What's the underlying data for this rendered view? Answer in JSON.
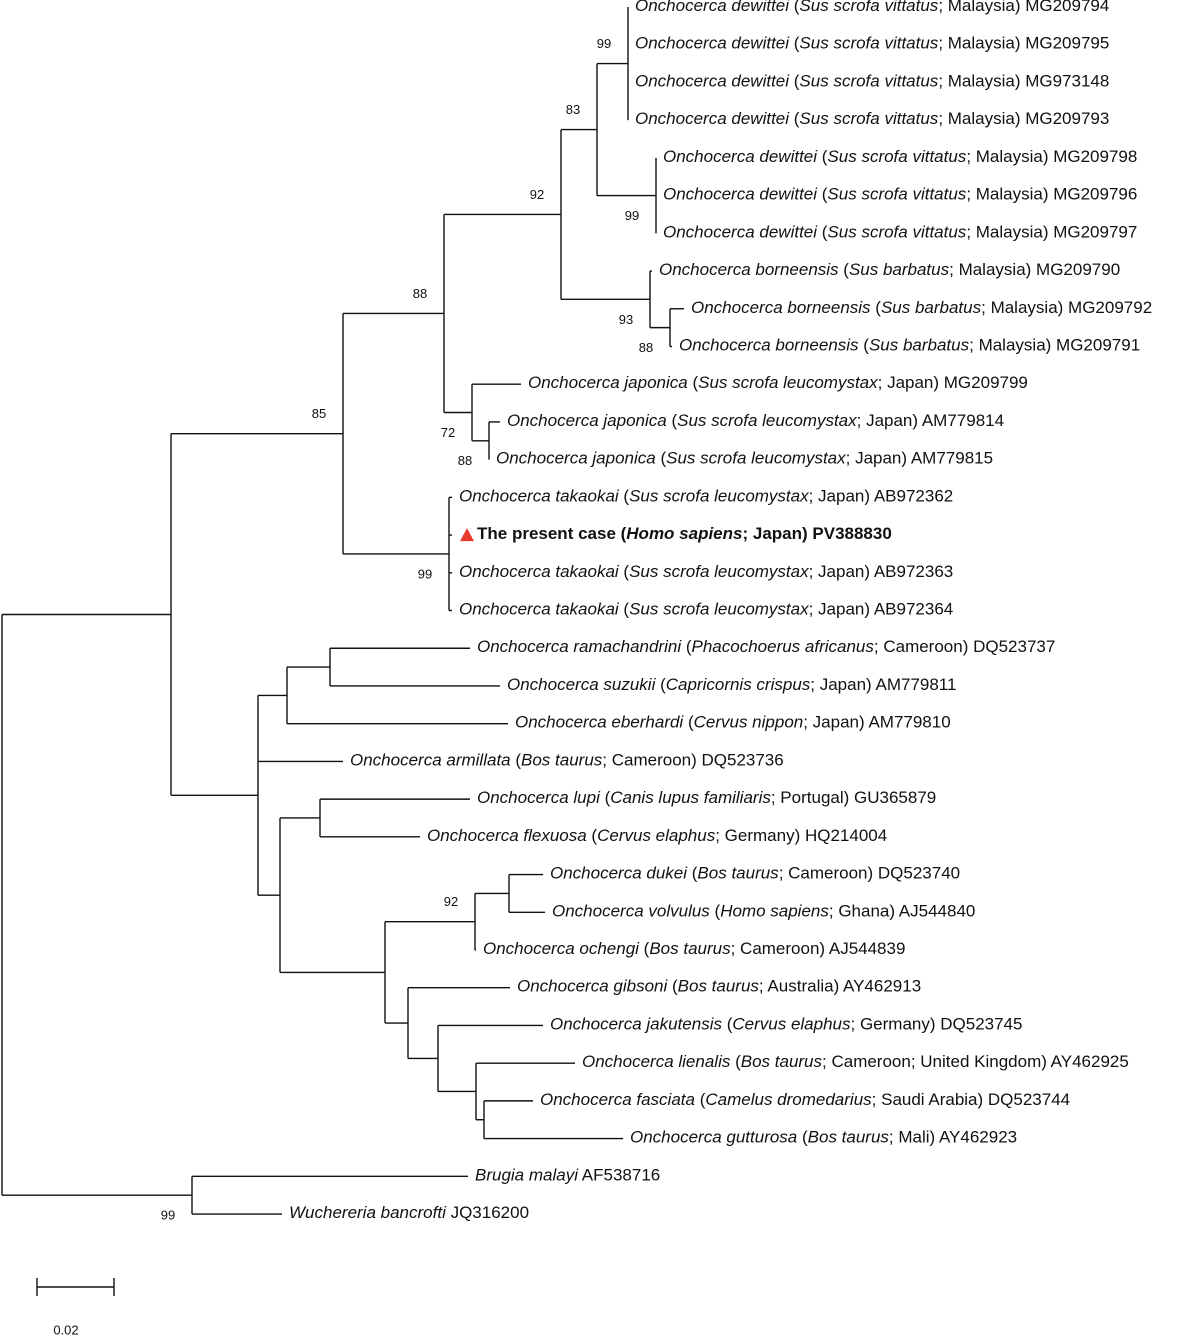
{
  "tree": {
    "leaves": [
      {
        "segments": [
          "Onchocerca dewittei",
          " (",
          "Sus scrofa vittatus",
          "; Malaysia) MG209794"
        ],
        "italic": [
          0,
          2
        ]
      },
      {
        "segments": [
          "Onchocerca dewittei",
          " (",
          "Sus scrofa vittatus",
          "; Malaysia) MG209795"
        ],
        "italic": [
          0,
          2
        ]
      },
      {
        "segments": [
          "Onchocerca dewittei",
          " (",
          "Sus scrofa vittatus",
          "; Malaysia) MG973148"
        ],
        "italic": [
          0,
          2
        ]
      },
      {
        "segments": [
          "Onchocerca dewittei",
          " (",
          "Sus scrofa vittatus",
          "; Malaysia) MG209793"
        ],
        "italic": [
          0,
          2
        ]
      },
      {
        "segments": [
          "Onchocerca dewittei",
          " (",
          "Sus scrofa vittatus",
          "; Malaysia) MG209798"
        ],
        "italic": [
          0,
          2
        ]
      },
      {
        "segments": [
          "Onchocerca dewittei",
          " (",
          "Sus scrofa vittatus",
          "; Malaysia) MG209796"
        ],
        "italic": [
          0,
          2
        ]
      },
      {
        "segments": [
          "Onchocerca dewittei",
          " (",
          "Sus scrofa vittatus",
          "; Malaysia) MG209797"
        ],
        "italic": [
          0,
          2
        ]
      },
      {
        "segments": [
          "Onchocerca borneensis",
          " (",
          "Sus barbatus",
          "; Malaysia) MG209790"
        ],
        "italic": [
          0,
          2
        ]
      },
      {
        "segments": [
          "Onchocerca borneensis",
          " (",
          "Sus barbatus",
          "; Malaysia) MG209792"
        ],
        "italic": [
          0,
          2
        ]
      },
      {
        "segments": [
          "Onchocerca borneensis",
          " (",
          "Sus barbatus",
          "; Malaysia) MG209791"
        ],
        "italic": [
          0,
          2
        ]
      },
      {
        "segments": [
          "Onchocerca japonica",
          " (",
          "Sus scrofa leucomystax",
          "; Japan) MG209799"
        ],
        "italic": [
          0,
          2
        ]
      },
      {
        "segments": [
          "Onchocerca japonica",
          " (",
          "Sus scrofa leucomystax",
          "; Japan) AM779814"
        ],
        "italic": [
          0,
          2
        ]
      },
      {
        "segments": [
          "Onchocerca japonica",
          " (",
          "Sus scrofa leucomystax",
          "; Japan) AM779815"
        ],
        "italic": [
          0,
          2
        ]
      },
      {
        "segments": [
          "Onchocerca takaokai",
          " (",
          "Sus scrofa leucomystax",
          "; Japan) AB972362"
        ],
        "italic": [
          0,
          2
        ]
      },
      {
        "segments": [
          "The present case (",
          "Homo sapiens",
          "; Japan) PV388830"
        ],
        "italic": [
          1
        ],
        "bold": true,
        "marker_color": "#e8392b"
      },
      {
        "segments": [
          "Onchocerca takaokai",
          " (",
          "Sus scrofa leucomystax",
          "; Japan) AB972363"
        ],
        "italic": [
          0,
          2
        ]
      },
      {
        "segments": [
          "Onchocerca takaokai",
          " (",
          "Sus scrofa leucomystax",
          "; Japan) AB972364"
        ],
        "italic": [
          0,
          2
        ]
      },
      {
        "segments": [
          "Onchocerca ramachandrini",
          " (",
          "Phacochoerus africanus",
          "; Cameroon) DQ523737"
        ],
        "italic": [
          0,
          2
        ]
      },
      {
        "segments": [
          "Onchocerca suzukii",
          " (",
          "Capricornis crispus",
          "; Japan) AM779811"
        ],
        "italic": [
          0,
          2
        ]
      },
      {
        "segments": [
          "Onchocerca eberhardi",
          " (",
          "Cervus nippon",
          "; Japan) AM779810"
        ],
        "italic": [
          0,
          2
        ]
      },
      {
        "segments": [
          "Onchocerca armillata",
          " (",
          "Bos taurus",
          "; Cameroon) DQ523736"
        ],
        "italic": [
          0,
          2
        ]
      },
      {
        "segments": [
          "Onchocerca lupi",
          " (",
          "Canis lupus familiaris",
          "; Portugal) GU365879"
        ],
        "italic": [
          0,
          2
        ]
      },
      {
        "segments": [
          "Onchocerca flexuosa",
          " (",
          "Cervus elaphus",
          "; Germany) HQ214004"
        ],
        "italic": [
          0,
          2
        ]
      },
      {
        "segments": [
          "Onchocerca dukei",
          " (",
          "Bos taurus",
          "; Cameroon) DQ523740"
        ],
        "italic": [
          0,
          2
        ]
      },
      {
        "segments": [
          "Onchocerca volvulus",
          " (",
          "Homo sapiens",
          "; Ghana) AJ544840"
        ],
        "italic": [
          0,
          2
        ]
      },
      {
        "segments": [
          "Onchocerca ochengi",
          " (",
          "Bos taurus",
          "; Cameroon) AJ544839"
        ],
        "italic": [
          0,
          2
        ]
      },
      {
        "segments": [
          "Onchocerca gibsoni",
          " (",
          "Bos taurus",
          "; Australia) AY462913"
        ],
        "italic": [
          0,
          2
        ]
      },
      {
        "segments": [
          "Onchocerca jakutensis",
          " (",
          "Cervus elaphus",
          "; Germany) DQ523745"
        ],
        "italic": [
          0,
          2
        ]
      },
      {
        "segments": [
          "Onchocerca lienalis",
          " (",
          "Bos taurus",
          "; Cameroon; United Kingdom) AY462925"
        ],
        "italic": [
          0,
          2
        ]
      },
      {
        "segments": [
          "Onchocerca fasciata",
          " (",
          "Camelus dromedarius",
          "; Saudi Arabia) DQ523744"
        ],
        "italic": [
          0,
          2
        ]
      },
      {
        "segments": [
          "Onchocerca gutturosa",
          " (",
          "Bos taurus",
          "; Mali) AY462923"
        ],
        "italic": [
          0,
          2
        ]
      },
      {
        "segments": [
          "Brugia malayi",
          " AF538716"
        ],
        "italic": [
          0
        ]
      },
      {
        "segments": [
          "Wuchereria bancrofti",
          " JQ316200"
        ],
        "italic": [
          0
        ]
      }
    ],
    "bootstrap_values": [
      99,
      83,
      92,
      88,
      85,
      99,
      93,
      88,
      72,
      88,
      99,
      92,
      99
    ],
    "scale_bar_label": "0.02"
  }
}
